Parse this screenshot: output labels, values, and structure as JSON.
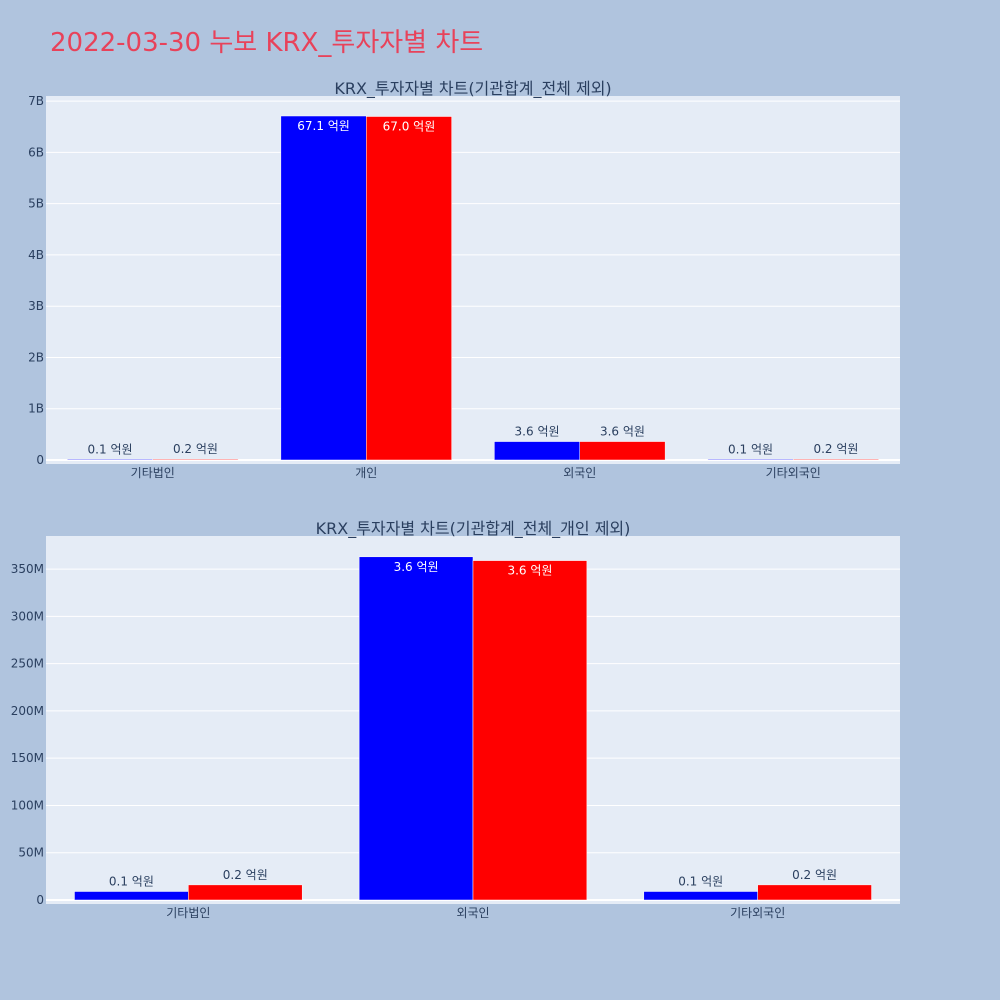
{
  "page_title": "2022-03-30 누보 KRX_투자자별 차트",
  "colors": {
    "background": "#b0c4de",
    "plot_bg": "#e5ecf6",
    "title": "#e8425a",
    "text": "#2a3f5f",
    "series_1": "#0000ff",
    "series_2": "#ff0000"
  },
  "chart_data": [
    {
      "type": "bar",
      "title": "KRX_투자자별 차트(기관합계_전체 제외)",
      "categories": [
        "기타법인",
        "개인",
        "외국인",
        "기타외국인"
      ],
      "series": [
        {
          "color": "#0000ff",
          "values": [
            9000000,
            6710000000,
            360000000,
            9000000
          ],
          "labels": [
            "0.1 억원",
            "67.1 억원",
            "3.6 억원",
            "0.1 억원"
          ]
        },
        {
          "color": "#ff0000",
          "values": [
            16000000,
            6700000000,
            360000000,
            16000000
          ],
          "labels": [
            "0.2 억원",
            "67.0 억원",
            "3.6 억원",
            "0.2 억원"
          ]
        }
      ],
      "ylim": [
        0,
        7100000000
      ],
      "yticks": [
        0,
        1000000000,
        2000000000,
        3000000000,
        4000000000,
        5000000000,
        6000000000,
        7000000000
      ],
      "ytick_labels": [
        "0",
        "1B",
        "2B",
        "3B",
        "4B",
        "5B",
        "6B",
        "7B"
      ],
      "grid": true,
      "xlabel": "",
      "ylabel": ""
    },
    {
      "type": "bar",
      "title": "KRX_투자자별 차트(기관합계_전체_개인 제외)",
      "categories": [
        "기타법인",
        "외국인",
        "기타외국인"
      ],
      "series": [
        {
          "color": "#0000ff",
          "values": [
            9000000,
            363000000,
            9000000
          ],
          "labels": [
            "0.1 억원",
            "3.6 억원",
            "0.1 억원"
          ]
        },
        {
          "color": "#ff0000",
          "values": [
            16000000,
            359000000,
            16000000
          ],
          "labels": [
            "0.2 억원",
            "3.6 억원",
            "0.2 억원"
          ]
        }
      ],
      "ylim": [
        0,
        385000000
      ],
      "yticks": [
        0,
        50000000,
        100000000,
        150000000,
        200000000,
        250000000,
        300000000,
        350000000
      ],
      "ytick_labels": [
        "0",
        "50M",
        "100M",
        "150M",
        "200M",
        "250M",
        "300M",
        "350M"
      ],
      "grid": true,
      "xlabel": "",
      "ylabel": ""
    }
  ]
}
